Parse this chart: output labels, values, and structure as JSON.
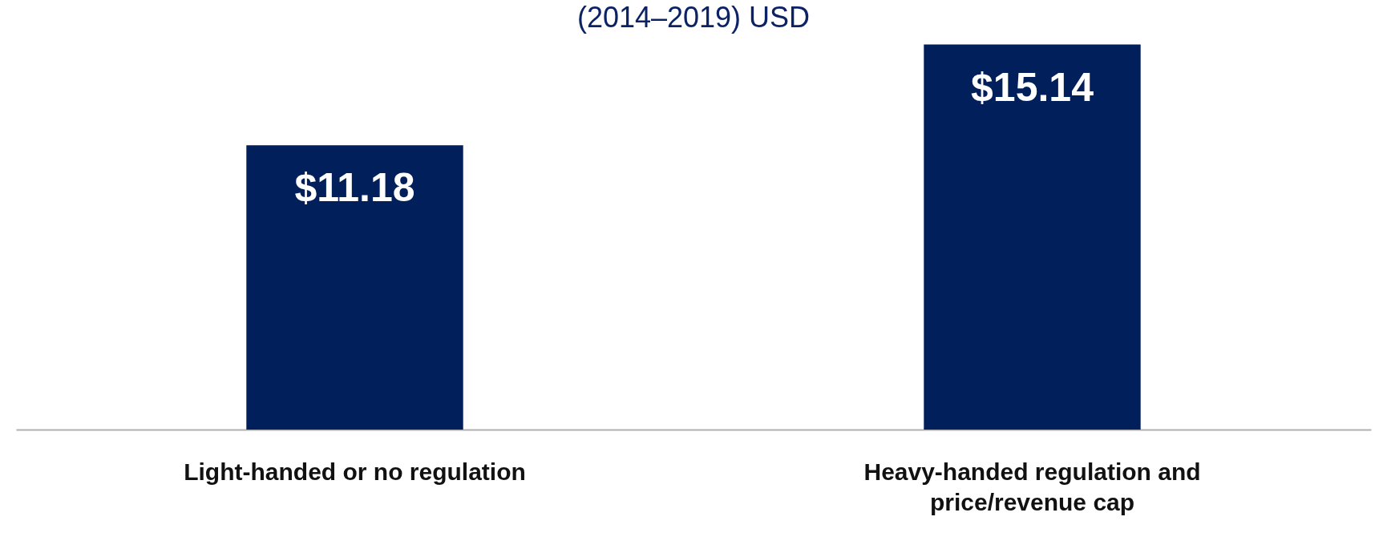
{
  "chart_data": {
    "type": "bar",
    "title": "(2014–2019) USD",
    "categories": [
      "Light-handed or no regulation",
      "Heavy-handed regulation and price/revenue cap"
    ],
    "values": [
      11.18,
      15.14
    ],
    "value_labels": [
      "$11.18",
      "$15.14"
    ],
    "color": "#001f5b"
  }
}
